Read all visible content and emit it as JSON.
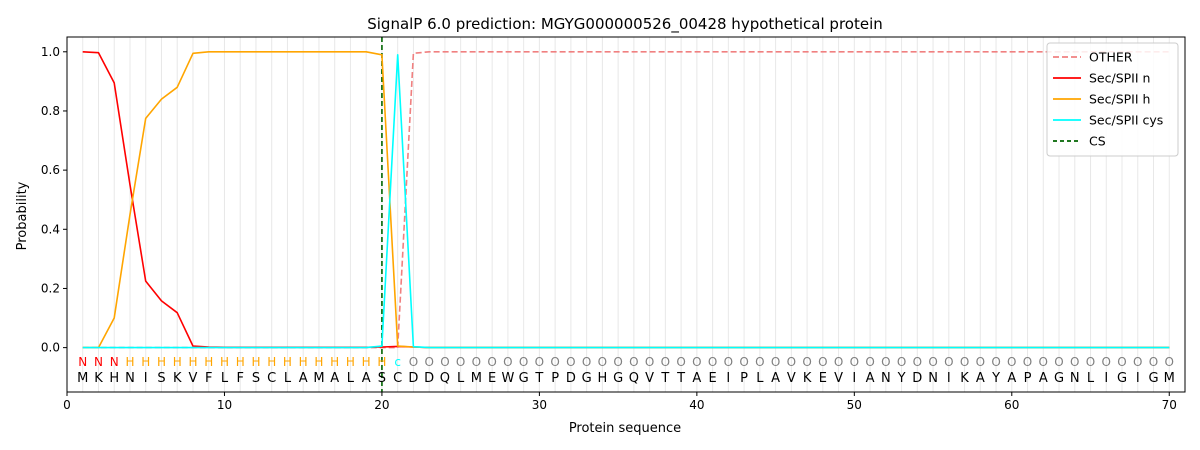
{
  "chart_data": {
    "type": "line",
    "title": "SignalP 6.0 prediction: MGYG000000526_00428 hypothetical protein",
    "xlabel": "Protein sequence",
    "ylabel": "Probability",
    "xlim": [
      0,
      71
    ],
    "ylim": [
      -0.15,
      1.05
    ],
    "xticks": [
      0,
      10,
      20,
      30,
      40,
      50,
      60,
      70
    ],
    "yticks": [
      0.0,
      0.2,
      0.4,
      0.6,
      0.8,
      1.0
    ],
    "ytick_labels": [
      "0.0",
      "0.2",
      "0.4",
      "0.6",
      "0.8",
      "1.0"
    ],
    "grid": "vertical lines at every residue",
    "legend_position": "top-right",
    "sequence": [
      "M",
      "K",
      "H",
      "N",
      "I",
      "S",
      "K",
      "V",
      "F",
      "L",
      "F",
      "S",
      "C",
      "L",
      "A",
      "M",
      "A",
      "L",
      "A",
      "S",
      "C",
      "D",
      "D",
      "Q",
      "L",
      "M",
      "E",
      "W",
      "G",
      "T",
      "P",
      "D",
      "G",
      "H",
      "G",
      "Q",
      "V",
      "T",
      "T",
      "A",
      "E",
      "I",
      "P",
      "L",
      "A",
      "V",
      "K",
      "E",
      "V",
      "I",
      "A",
      "N",
      "Y",
      "D",
      "N",
      "I",
      "K",
      "A",
      "Y",
      "A",
      "P",
      "A",
      "G",
      "N",
      "L",
      "I",
      "G",
      "I",
      "G",
      "M"
    ],
    "labels": [
      "N",
      "N",
      "N",
      "H",
      "H",
      "H",
      "H",
      "H",
      "H",
      "H",
      "H",
      "H",
      "H",
      "H",
      "H",
      "H",
      "H",
      "H",
      "H",
      "H",
      "c",
      "O",
      "O",
      "O",
      "O",
      "O",
      "O",
      "O",
      "O",
      "O",
      "O",
      "O",
      "O",
      "O",
      "O",
      "O",
      "O",
      "O",
      "O",
      "O",
      "O",
      "O",
      "O",
      "O",
      "O",
      "O",
      "O",
      "O",
      "O",
      "O",
      "O",
      "O",
      "O",
      "O",
      "O",
      "O",
      "O",
      "O",
      "O",
      "O",
      "O",
      "O",
      "O",
      "O",
      "O",
      "O",
      "O",
      "O",
      "O",
      "O"
    ],
    "label_colors": {
      "N": "#ff0000",
      "H": "#ffa500",
      "c": "#00ffff",
      "O": "#808080"
    },
    "cs_position": 20,
    "series": [
      {
        "name": "OTHER",
        "color": "#f08080",
        "dash": true,
        "values": [
          0,
          0,
          0,
          0,
          0,
          0,
          0,
          0,
          0,
          0,
          0,
          0,
          0,
          0,
          0,
          0,
          0,
          0,
          0,
          0,
          0,
          0.995,
          1,
          1,
          1,
          1,
          1,
          1,
          1,
          1,
          1,
          1,
          1,
          1,
          1,
          1,
          1,
          1,
          1,
          1,
          1,
          1,
          1,
          1,
          1,
          1,
          1,
          1,
          1,
          1,
          1,
          1,
          1,
          1,
          1,
          1,
          1,
          1,
          1,
          1,
          1,
          1,
          1,
          1,
          1,
          1,
          1,
          1,
          1,
          1
        ]
      },
      {
        "name": "Sec/SPII n",
        "color": "#ff0000",
        "dash": false,
        "values": [
          1.0,
          0.997,
          0.895,
          0.55,
          0.225,
          0.158,
          0.118,
          0.005,
          0.002,
          0.001,
          0.001,
          0.001,
          0.001,
          0.001,
          0.001,
          0.001,
          0.001,
          0.001,
          0.001,
          0.002,
          0.004,
          0.002,
          0,
          0,
          0,
          0,
          0,
          0,
          0,
          0,
          0,
          0,
          0,
          0,
          0,
          0,
          0,
          0,
          0,
          0,
          0,
          0,
          0,
          0,
          0,
          0,
          0,
          0,
          0,
          0,
          0,
          0,
          0,
          0,
          0,
          0,
          0,
          0,
          0,
          0,
          0,
          0,
          0,
          0,
          0,
          0,
          0,
          0,
          0,
          0
        ]
      },
      {
        "name": "Sec/SPII h",
        "color": "#ffa500",
        "dash": false,
        "values": [
          0,
          0,
          0.1,
          0.45,
          0.775,
          0.84,
          0.88,
          0.995,
          1,
          1,
          1,
          1,
          1,
          1,
          1,
          1,
          1,
          1,
          1,
          0.99,
          0.005,
          0.002,
          0,
          0,
          0,
          0,
          0,
          0,
          0,
          0,
          0,
          0,
          0,
          0,
          0,
          0,
          0,
          0,
          0,
          0,
          0,
          0,
          0,
          0,
          0,
          0,
          0,
          0,
          0,
          0,
          0,
          0,
          0,
          0,
          0,
          0,
          0,
          0,
          0,
          0,
          0,
          0,
          0,
          0,
          0,
          0,
          0,
          0,
          0,
          0
        ]
      },
      {
        "name": "Sec/SPII cys",
        "color": "#00ffff",
        "dash": false,
        "values": [
          0,
          0,
          0,
          0,
          0,
          0,
          0,
          0,
          0,
          0,
          0,
          0,
          0,
          0,
          0,
          0,
          0,
          0,
          0,
          0.005,
          0.99,
          0.003,
          0,
          0,
          0,
          0,
          0,
          0,
          0,
          0,
          0,
          0,
          0,
          0,
          0,
          0,
          0,
          0,
          0,
          0,
          0,
          0,
          0,
          0,
          0,
          0,
          0,
          0,
          0,
          0,
          0,
          0,
          0,
          0,
          0,
          0,
          0,
          0,
          0,
          0,
          0,
          0,
          0,
          0,
          0,
          0,
          0,
          0,
          0,
          0
        ]
      }
    ],
    "cs_legend": {
      "name": "CS",
      "color": "#006400"
    }
  }
}
